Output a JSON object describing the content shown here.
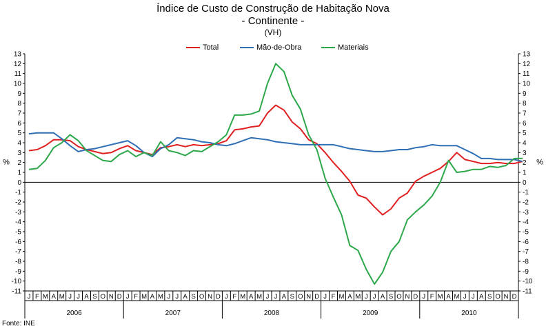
{
  "chart_data": {
    "type": "line",
    "title": "Índice de Custo de Construção de Habitação Nova",
    "subtitle": "- Continente -",
    "subtitle2": "(VH)",
    "ylabel": "%",
    "ylabel_right": "%",
    "ylim": [
      -11,
      13
    ],
    "yticks": [
      13,
      12,
      11,
      10,
      9,
      8,
      7,
      6,
      5,
      4,
      3,
      2,
      1,
      0,
      -1,
      -2,
      -3,
      -4,
      -5,
      -6,
      -7,
      -8,
      -9,
      -10,
      -11
    ],
    "grid": false,
    "legend_position": "top",
    "month_labels": [
      "J",
      "F",
      "M",
      "A",
      "M",
      "J",
      "J",
      "A",
      "S",
      "O",
      "N",
      "D"
    ],
    "years": [
      "2006",
      "2007",
      "2008",
      "2009",
      "2010"
    ],
    "source": "Fonte: INE",
    "series": [
      {
        "name": "Total",
        "color": "#e02020",
        "values": [
          3.2,
          3.3,
          3.7,
          4.3,
          4.3,
          4.2,
          3.6,
          3.3,
          3.1,
          2.9,
          3.0,
          3.4,
          3.7,
          3.2,
          3.0,
          2.8,
          3.5,
          3.6,
          3.8,
          3.6,
          3.8,
          3.7,
          3.8,
          3.9,
          4.2,
          5.3,
          5.4,
          5.6,
          5.7,
          7.0,
          7.8,
          7.3,
          6.1,
          5.4,
          4.3,
          3.9,
          3.0,
          2.0,
          1.1,
          0.1,
          -1.3,
          -1.6,
          -2.5,
          -3.3,
          -2.7,
          -1.6,
          -1.1,
          0.1,
          0.6,
          1.0,
          1.4,
          2.1,
          3.0,
          2.3,
          2.1,
          1.9,
          1.9,
          2.0,
          1.9,
          1.9,
          2.1
        ]
      },
      {
        "name": "Mão-de-Obra",
        "color": "#2f6fb5",
        "values": [
          4.9,
          5.0,
          5.0,
          5.0,
          4.4,
          3.7,
          3.1,
          3.3,
          3.4,
          3.6,
          3.8,
          4.0,
          4.2,
          3.7,
          3.0,
          2.6,
          3.4,
          3.8,
          4.5,
          4.4,
          4.3,
          4.1,
          4.0,
          3.8,
          3.7,
          3.9,
          4.2,
          4.5,
          4.4,
          4.3,
          4.1,
          4.0,
          3.9,
          3.8,
          3.8,
          3.8,
          3.8,
          3.8,
          3.6,
          3.4,
          3.3,
          3.2,
          3.1,
          3.1,
          3.2,
          3.3,
          3.3,
          3.5,
          3.6,
          3.8,
          3.7,
          3.7,
          3.7,
          3.3,
          2.9,
          2.4,
          2.4,
          2.3,
          2.3,
          2.3,
          2.1
        ]
      },
      {
        "name": "Materiais",
        "color": "#2ca84a",
        "values": [
          1.3,
          1.4,
          2.2,
          3.5,
          4.0,
          4.8,
          4.2,
          3.2,
          2.7,
          2.2,
          2.1,
          2.8,
          3.2,
          2.6,
          3.0,
          2.7,
          4.1,
          3.2,
          3.0,
          2.7,
          3.2,
          3.1,
          3.6,
          4.1,
          4.8,
          6.8,
          6.8,
          6.9,
          7.2,
          10.0,
          12.0,
          11.2,
          8.8,
          7.4,
          4.8,
          3.3,
          0.4,
          -1.5,
          -3.3,
          -6.4,
          -6.9,
          -8.8,
          -10.3,
          -9.1,
          -7.0,
          -6.0,
          -3.8,
          -3.0,
          -2.3,
          -1.4,
          0.0,
          2.2,
          1.0,
          1.1,
          1.3,
          1.3,
          1.6,
          1.5,
          1.7,
          2.4,
          2.4
        ]
      }
    ]
  }
}
